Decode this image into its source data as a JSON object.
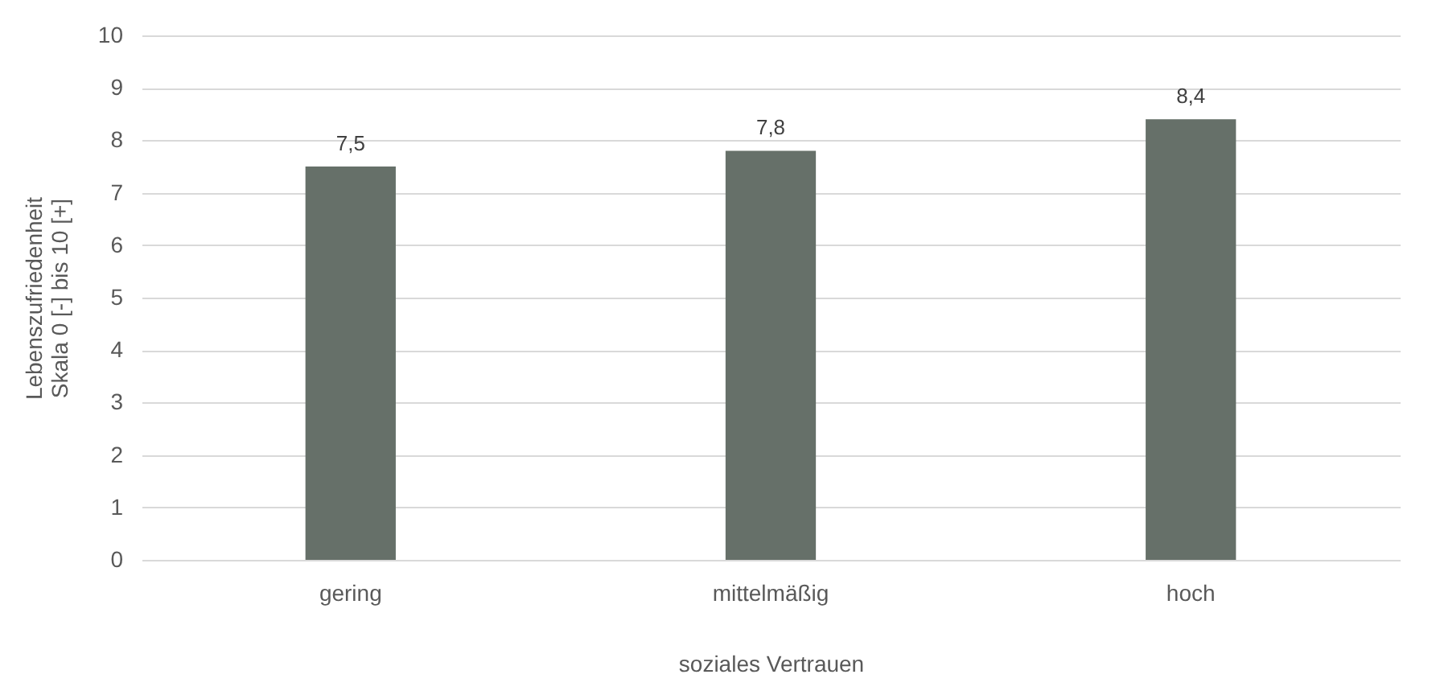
{
  "chart_data": {
    "type": "bar",
    "xlabel": "soziales Vertrauen",
    "ylabel": "Lebenszufriedenheit\nSkala 0 [-] bis 10 [+]",
    "categories": [
      "gering",
      "mittelmäßig",
      "hoch"
    ],
    "values": [
      7.5,
      7.8,
      8.4
    ],
    "value_labels": [
      "7,5",
      "7,8",
      "8,4"
    ],
    "color": "#667069",
    "ylim": [
      0,
      10
    ],
    "yticks": [
      0,
      1,
      2,
      3,
      4,
      5,
      6,
      7,
      8,
      9,
      10
    ],
    "grid": "y"
  }
}
